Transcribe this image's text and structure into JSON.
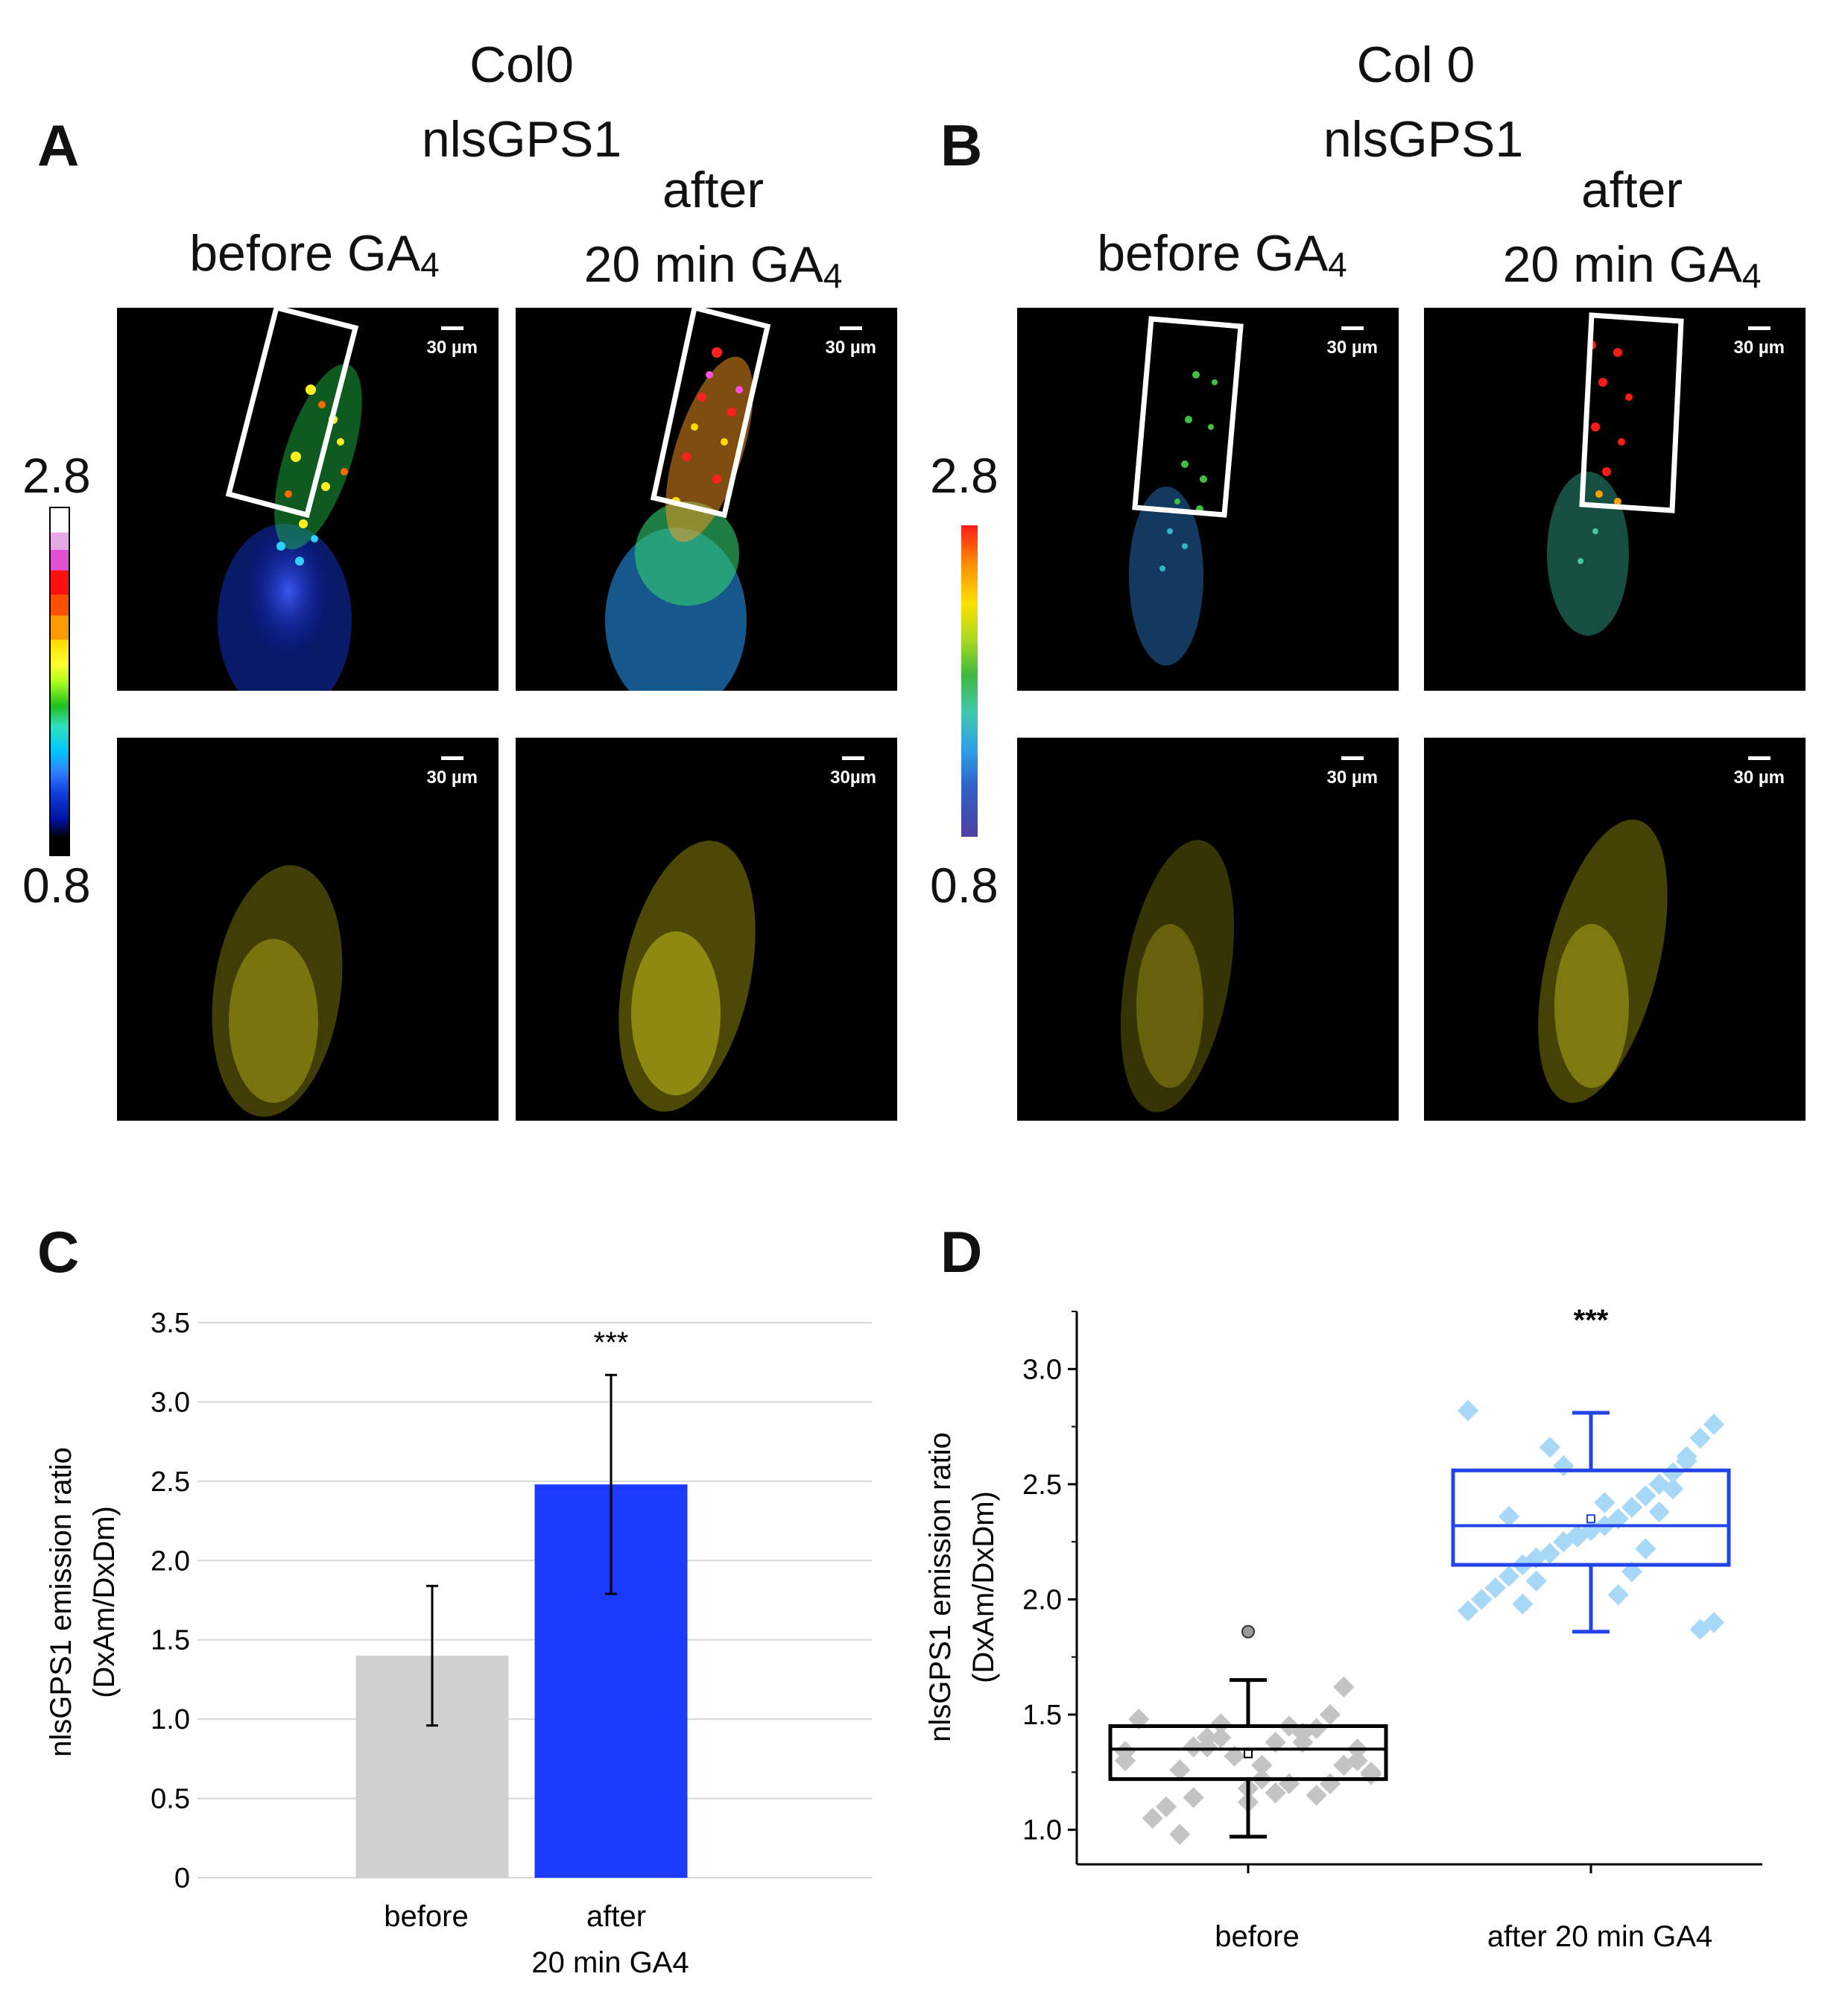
{
  "panel_a": {
    "label": "A",
    "line1": "Col0",
    "line2": "nlsGPS1",
    "before": {
      "text": "before GA",
      "sub": "4"
    },
    "after": {
      "line1": "after",
      "line2": "20 min GA",
      "sub": "4"
    },
    "scale_top_left": "30 µm",
    "scale_top_right": "30 µm",
    "scale_bottom_left": "30 µm",
    "scale_bottom_right": "30µm",
    "colorbar_max": "2.8",
    "colorbar_min": "0.8"
  },
  "panel_b": {
    "label": "B",
    "line1": "Col 0",
    "line2": "nlsGPS1",
    "before": {
      "text": "before GA",
      "sub": "4"
    },
    "after": {
      "line1": "after",
      "line2": "20 min GA",
      "sub": "4"
    },
    "scale_top_left": "30 µm",
    "scale_top_right": "30 µm",
    "scale_bottom_left": "30 µm",
    "scale_bottom_right": "30 µm",
    "colorbar_max": "2.8",
    "colorbar_min": "0.8"
  },
  "colors": {
    "before": "#d0d0d0",
    "after": "#1a3bff",
    "box_after": "#2244e8",
    "points_after": "#a8d8f8",
    "points_before": "#c4c4c4"
  },
  "chart_data": [
    {
      "panel": "C",
      "type": "bar",
      "categories": [
        "before",
        "after\n20 min GA4"
      ],
      "values": [
        1.4,
        2.48
      ],
      "error": [
        0.44,
        0.69
      ],
      "annotation": "***",
      "ylabel_line1": "nlsGPS1 emission ratio",
      "ylabel_line2": "(DxAm/DxDm)",
      "ylim": [
        0,
        3.5
      ],
      "yticks": [
        "0",
        "0.5",
        "1.0",
        "1.5",
        "2.0",
        "2.5",
        "3.0",
        "3.5"
      ],
      "grid": true
    },
    {
      "panel": "D",
      "type": "box",
      "categories": [
        "before",
        "after 20 min GA4"
      ],
      "annotation": "***",
      "ylabel_line1": "nlsGPS1 emission ratio",
      "ylabel_line2": "(DxAm/DxDm)",
      "ylim": [
        0.85,
        3.25
      ],
      "yticks": [
        "1.0",
        "1.5",
        "2.0",
        "2.5",
        "3.0"
      ],
      "boxes": [
        {
          "q1": 1.22,
          "median": 1.35,
          "q3": 1.45,
          "whisker_low": 0.97,
          "whisker_high": 1.65,
          "mean": 1.33,
          "outliers": [
            1.86
          ]
        },
        {
          "q1": 2.15,
          "median": 2.32,
          "q3": 2.56,
          "whisker_low": 1.86,
          "whisker_high": 2.81,
          "mean": 2.35,
          "outliers": []
        }
      ],
      "points": [
        [
          1.3,
          1.25,
          1.35,
          1.28,
          1.2,
          1.15,
          1.42,
          1.45,
          1.38,
          1.22,
          1.18,
          1.32,
          1.4,
          1.36,
          1.14,
          1.26,
          1.1,
          1.05,
          1.48,
          1.34,
          1.24,
          1.3,
          1.62,
          1.5,
          1.44,
          1.38,
          1.2,
          1.16,
          1.28,
          1.12,
          1.32,
          1.46,
          1.4,
          1.36,
          0.98
        ],
        [
          2.82,
          2.76,
          2.7,
          2.6,
          2.55,
          2.5,
          2.45,
          2.4,
          2.35,
          2.32,
          2.3,
          2.28,
          2.25,
          2.2,
          2.18,
          2.15,
          2.1,
          2.05,
          2.0,
          1.95,
          1.9,
          1.87,
          2.62,
          2.48,
          2.38,
          2.22,
          2.12,
          2.02,
          2.42,
          2.3,
          2.27,
          2.58,
          2.66,
          2.08,
          1.98,
          2.36
        ]
      ]
    }
  ],
  "panel_c_label": "C",
  "panel_d_label": "D"
}
